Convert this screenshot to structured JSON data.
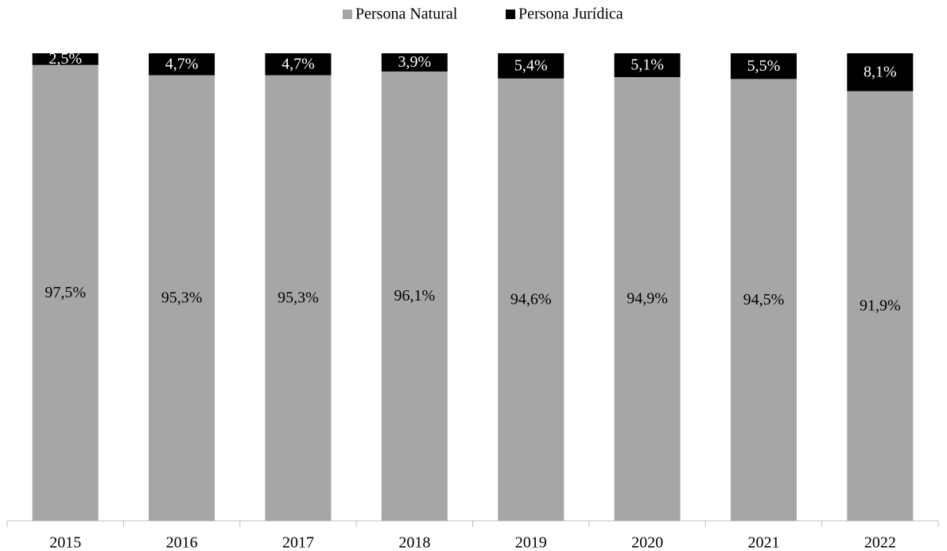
{
  "chart_data": {
    "type": "stacked_bar",
    "categories": [
      "2015",
      "2016",
      "2017",
      "2018",
      "2019",
      "2020",
      "2021",
      "2022"
    ],
    "series": [
      {
        "name": "Persona Natural",
        "color": "#a6a6a6",
        "label_color": "#000000",
        "values": [
          97.5,
          95.3,
          95.3,
          96.1,
          94.6,
          94.9,
          94.5,
          91.9
        ],
        "value_labels": [
          "97,5%",
          "95,3%",
          "95,3%",
          "96,1%",
          "94,6%",
          "94,9%",
          "94,5%",
          "91,9%"
        ]
      },
      {
        "name": "Persona Jurídica",
        "color": "#000000",
        "label_color": "#ffffff",
        "values": [
          2.5,
          4.7,
          4.7,
          3.9,
          5.4,
          5.1,
          5.5,
          8.1
        ],
        "value_labels": [
          "2,5%",
          "4,7%",
          "4,7%",
          "3,9%",
          "5,4%",
          "5,1%",
          "5,5%",
          "8,1%"
        ]
      }
    ],
    "ylim": [
      0,
      100
    ],
    "legend": "top"
  }
}
